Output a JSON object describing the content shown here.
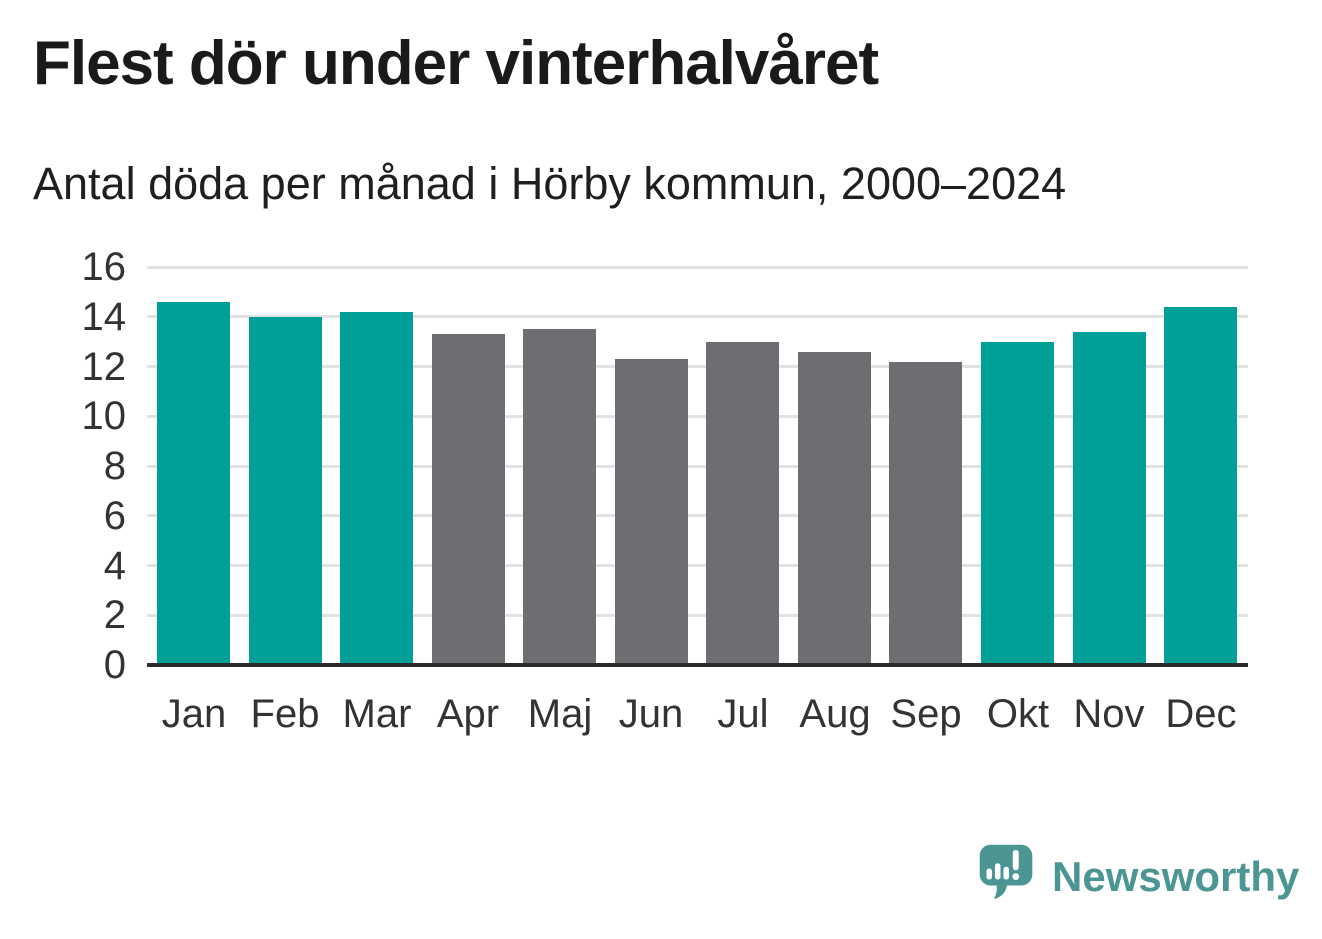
{
  "header": {
    "title": "Flest dör under vinterhalvåret",
    "subtitle": "Antal döda per månad i Hörby kommun, 2000–2024"
  },
  "footer": {
    "brand": "Newsworthy",
    "logo_icon": "speech-bubble-with-bar-chart-and-exclamation"
  },
  "colors": {
    "accent_teal": "#00a099",
    "neutral_gray": "#6e6d71",
    "logo_teal": "#4b9693",
    "gridline": "#e2e2e2",
    "axis": "#2d2d2d",
    "title_text": "#1a1a1a",
    "tick_text": "#333333",
    "background": "#ffffff"
  },
  "chart_data": {
    "type": "bar",
    "title": "Flest dör under vinterhalvåret",
    "subtitle": "Antal döda per månad i Hörby kommun, 2000–2024",
    "categories": [
      "Jan",
      "Feb",
      "Mar",
      "Apr",
      "Maj",
      "Jun",
      "Jul",
      "Aug",
      "Sep",
      "Okt",
      "Nov",
      "Dec"
    ],
    "values": [
      14.6,
      14.0,
      14.2,
      13.3,
      13.5,
      12.3,
      13.0,
      12.6,
      12.2,
      13.0,
      13.4,
      14.4
    ],
    "bar_colors": [
      "#00a099",
      "#00a099",
      "#00a099",
      "#6e6d71",
      "#6e6d71",
      "#6e6d71",
      "#6e6d71",
      "#6e6d71",
      "#6e6d71",
      "#00a099",
      "#00a099",
      "#00a099"
    ],
    "highlighted_categories": [
      "Jan",
      "Feb",
      "Mar",
      "Okt",
      "Nov",
      "Dec"
    ],
    "xlabel": "",
    "ylabel": "",
    "ylim": [
      0,
      16
    ],
    "yticks": [
      0,
      2,
      4,
      6,
      8,
      10,
      12,
      14,
      16
    ],
    "grid": "horizontal-only",
    "legend": "none"
  }
}
